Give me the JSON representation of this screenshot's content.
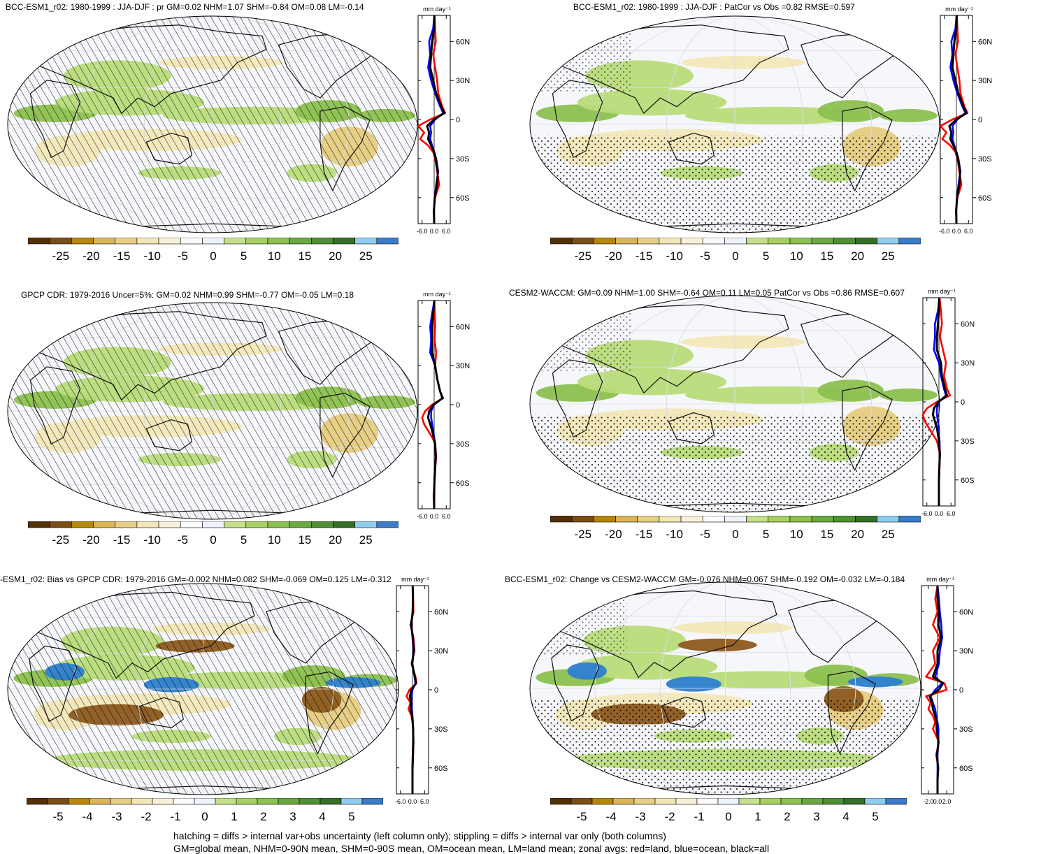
{
  "panels": [
    {
      "id": "p1",
      "title": "BCC-ESM1_r02: 1980-1999 : JJA-DJF : pr GM=0.02 NHM=1.07 SHM=-0.84 OM=0.08 LM=-0.14",
      "units": "mm day⁻¹",
      "pattern": "hatch",
      "colorbar_labels": [
        "-25",
        "-20",
        "-15",
        "-10",
        "-5",
        "0",
        "5",
        "10",
        "15",
        "20",
        "25"
      ],
      "zonal_xticks": [
        "-6.0",
        "0.0",
        "6.0"
      ],
      "zonal_xrange": [
        -8,
        8
      ]
    },
    {
      "id": "p2",
      "title": "BCC-ESM1_r02: 1980-1999 : JJA-DJF : PatCor vs Obs =0.82 RMSE=0.597",
      "units": "mm day⁻¹",
      "pattern": "stipple",
      "colorbar_labels": [
        "-25",
        "-20",
        "-15",
        "-10",
        "-5",
        "0",
        "5",
        "10",
        "15",
        "20",
        "25"
      ],
      "zonal_xticks": [
        "-6.0",
        "0.0",
        "6.0"
      ],
      "zonal_xrange": [
        -8,
        8
      ]
    },
    {
      "id": "p3",
      "title": "GPCP CDR: 1979-2016 Uncer=5%: GM=0.02 NHM=0.99 SHM=-0.77 OM=-0.05 LM=0.18",
      "units": "mm day⁻¹",
      "pattern": "hatch",
      "colorbar_labels": [
        "-25",
        "-20",
        "-15",
        "-10",
        "-5",
        "0",
        "5",
        "10",
        "15",
        "20",
        "25"
      ],
      "zonal_xticks": [
        "-6.0",
        "0.0",
        "6.0"
      ],
      "zonal_xrange": [
        -8,
        8
      ]
    },
    {
      "id": "p4",
      "title": "CESM2-WACCM: GM=0.09 NHM=1.00 SHM=-0.64 OM=0.11 LM=0.05 PatCor vs Obs =0.86 RMSE=0.607",
      "units": "mm day⁻¹",
      "pattern": "stipple",
      "colorbar_labels": [
        "-25",
        "-20",
        "-15",
        "-10",
        "-5",
        "0",
        "5",
        "10",
        "15",
        "20",
        "25"
      ],
      "zonal_xticks": [
        "-6.0",
        "0.0",
        "6.0"
      ],
      "zonal_xrange": [
        -8,
        8
      ]
    },
    {
      "id": "p5",
      "title": "-ESM1_r02: Bias vs GPCP CDR: 1979-2016 GM=-0.002 NHM=0.082 SHM=-0.069 OM=0.125 LM=-0.312",
      "units": "mm day⁻¹",
      "pattern": "hatch",
      "colorbar_labels": [
        "-5",
        "-4",
        "-3",
        "-2",
        "-1",
        "0",
        "1",
        "2",
        "3",
        "4",
        "5"
      ],
      "zonal_xticks": [
        "-6.0",
        "0.0",
        "6.0"
      ],
      "zonal_xrange": [
        -8,
        8
      ]
    },
    {
      "id": "p6",
      "title": "BCC-ESM1_r02: Change vs CESM2-WACCM GM=-0.076 NHM=0.067 SHM=-0.192 OM=-0.032 LM=-0.184",
      "units": "mm day⁻¹",
      "pattern": "stipple",
      "colorbar_labels": [
        "-5",
        "-4",
        "-3",
        "-2",
        "-1",
        "0",
        "1",
        "2",
        "3",
        "4",
        "5"
      ],
      "zonal_xticks": [
        "-2.0",
        "0.0",
        "2.0"
      ],
      "zonal_xrange": [
        -3.5,
        3.5
      ]
    }
  ],
  "lat_labels": [
    "60N",
    "30N",
    "0",
    "30S",
    "60S"
  ],
  "lat_values": [
    60,
    30,
    0,
    -30,
    -60
  ],
  "colorbar_colors": [
    "#543005",
    "#7a4e17",
    "#b8860b",
    "#d9b458",
    "#e6cf85",
    "#f1e6b6",
    "#f7f1d9",
    "#fafafa",
    "#eef2fb",
    "#c5e08a",
    "#a7d062",
    "#8cc04f",
    "#6aa843",
    "#4f8f35",
    "#356f28",
    "#8ecdf0",
    "#3a7cc9"
  ],
  "series_colors": {
    "land": "#ff0000",
    "ocean": "#0000ff",
    "all": "#000000"
  },
  "map_colors": {
    "ocean_bg": "#f6f7fb",
    "tan_light": "#f3e8b8",
    "tan_mid": "#e6cc80",
    "brown": "#8c5a1f",
    "green_light": "#b8dc7a",
    "green_mid": "#8cc04f",
    "green_dark": "#4f8f35",
    "blue": "#2d7fd0"
  },
  "chart_data": [
    {
      "type": "line",
      "title": "BCC-ESM1_r02: 1980-1999 : JJA-DJF : pr GM=0.02 NHM=1.07 SHM=-0.84 OM=0.08 LM=-0.14",
      "xlabel": "mm day⁻¹",
      "ylabel": "",
      "xlim": [
        -8,
        8
      ],
      "ylim": [
        -80,
        80
      ],
      "y": [
        80,
        70,
        60,
        50,
        40,
        30,
        20,
        10,
        5,
        0,
        -5,
        -10,
        -15,
        -20,
        -25,
        -30,
        -40,
        -50,
        -60,
        -70,
        -80
      ],
      "series": [
        {
          "name": "land",
          "values": [
            0.2,
            0.5,
            0.8,
            -0.5,
            0.5,
            1.5,
            2.0,
            4.0,
            5.5,
            -2.0,
            -8.0,
            -5.0,
            -7.0,
            -3.0,
            -0.5,
            0.5,
            1.5,
            2.5,
            0.5,
            -0.2,
            0.0
          ]
        },
        {
          "name": "ocean",
          "values": [
            0.1,
            -0.5,
            -2.5,
            -2.0,
            -3.0,
            -1.5,
            0.5,
            3.0,
            4.5,
            0.5,
            -2.0,
            -1.5,
            -2.0,
            -1.0,
            0.0,
            1.0,
            2.0,
            1.0,
            0.3,
            -0.1,
            0.0
          ]
        },
        {
          "name": "all",
          "values": [
            0.1,
            0.0,
            -1.0,
            -1.5,
            -2.0,
            -0.5,
            1.0,
            3.5,
            5.0,
            0.0,
            -3.5,
            -2.5,
            -3.0,
            -1.5,
            0.0,
            0.8,
            1.8,
            1.5,
            0.3,
            -0.1,
            0.0
          ]
        }
      ]
    },
    {
      "type": "line",
      "title": "BCC-ESM1_r02: 1980-1999 : JJA-DJF : PatCor vs Obs =0.82 RMSE=0.597",
      "xlabel": "mm day⁻¹",
      "ylabel": "",
      "xlim": [
        -8,
        8
      ],
      "ylim": [
        -80,
        80
      ],
      "y": [
        80,
        70,
        60,
        50,
        40,
        30,
        20,
        10,
        5,
        0,
        -5,
        -10,
        -15,
        -20,
        -25,
        -30,
        -40,
        -50,
        -60,
        -70,
        -80
      ],
      "series": [
        {
          "name": "land",
          "values": [
            0.2,
            0.5,
            0.8,
            -0.5,
            0.5,
            1.5,
            2.0,
            4.0,
            5.5,
            -2.0,
            -8.0,
            -5.0,
            -7.0,
            -3.0,
            -0.5,
            0.5,
            1.5,
            2.5,
            0.5,
            -0.2,
            0.0
          ]
        },
        {
          "name": "ocean",
          "values": [
            0.1,
            -0.5,
            -2.5,
            -2.0,
            -3.0,
            -1.5,
            0.5,
            3.0,
            4.5,
            0.5,
            -2.0,
            -1.5,
            -2.0,
            -1.0,
            0.0,
            1.0,
            2.0,
            1.0,
            0.3,
            -0.1,
            0.0
          ]
        },
        {
          "name": "all",
          "values": [
            0.1,
            0.0,
            -1.0,
            -1.5,
            -2.0,
            -0.5,
            1.0,
            3.5,
            5.0,
            0.0,
            -3.5,
            -2.5,
            -3.0,
            -1.5,
            0.0,
            0.8,
            1.8,
            1.5,
            0.3,
            -0.1,
            0.0
          ]
        }
      ]
    },
    {
      "type": "line",
      "title": "GPCP CDR: 1979-2016 Uncer=5%: GM=0.02 NHM=0.99 SHM=-0.77 OM=-0.05 LM=0.18",
      "xlabel": "mm day⁻¹",
      "ylabel": "",
      "xlim": [
        -8,
        8
      ],
      "ylim": [
        -80,
        80
      ],
      "y": [
        80,
        70,
        60,
        50,
        40,
        30,
        20,
        10,
        5,
        0,
        -5,
        -10,
        -15,
        -20,
        -25,
        -30,
        -40,
        -50,
        -60,
        -70,
        -80
      ],
      "series": [
        {
          "name": "land",
          "values": [
            0.1,
            0.3,
            0.5,
            0.2,
            1.0,
            0.5,
            1.5,
            3.0,
            4.5,
            -1.0,
            -4.5,
            -6.0,
            -5.0,
            -3.0,
            -1.0,
            0.5,
            1.0,
            0.5,
            0.2,
            -0.3,
            0.0
          ]
        },
        {
          "name": "ocean",
          "values": [
            0.1,
            -1.0,
            -2.0,
            -1.5,
            -2.0,
            0.5,
            1.5,
            3.0,
            4.0,
            0.0,
            -1.5,
            -1.5,
            -1.0,
            -0.5,
            0.0,
            0.5,
            0.8,
            0.3,
            0.1,
            0.0,
            0.0
          ]
        },
        {
          "name": "all",
          "values": [
            0.1,
            -0.5,
            -1.0,
            -1.0,
            -1.0,
            0.5,
            1.5,
            3.0,
            4.2,
            -0.3,
            -2.5,
            -3.0,
            -2.0,
            -1.0,
            -0.2,
            0.5,
            0.8,
            0.4,
            0.1,
            0.0,
            0.0
          ]
        }
      ]
    },
    {
      "type": "line",
      "title": "CESM2-WACCM: GM=0.09 NHM=1.00 SHM=-0.64 OM=0.11 LM=0.05 PatCor vs Obs =0.86 RMSE=0.607",
      "xlabel": "mm day⁻¹",
      "ylabel": "",
      "xlim": [
        -8,
        8
      ],
      "ylim": [
        -80,
        80
      ],
      "y": [
        80,
        70,
        60,
        50,
        40,
        30,
        20,
        10,
        5,
        0,
        -5,
        -10,
        -15,
        -20,
        -25,
        -30,
        -40,
        -50,
        -60,
        -70,
        -80
      ],
      "series": [
        {
          "name": "land",
          "values": [
            0.3,
            1.0,
            1.5,
            0.5,
            2.0,
            3.5,
            2.5,
            4.0,
            5.5,
            -1.0,
            -6.0,
            -8.0,
            -7.0,
            -5.0,
            -3.0,
            -1.0,
            0.5,
            0.3,
            0.1,
            0.0,
            0.0
          ]
        },
        {
          "name": "ocean",
          "values": [
            0.2,
            -0.5,
            -2.0,
            -2.0,
            -2.5,
            0.0,
            1.0,
            2.5,
            3.5,
            0.0,
            -1.0,
            -1.0,
            -0.5,
            0.0,
            0.0,
            0.3,
            0.5,
            0.2,
            0.0,
            0.0,
            0.0
          ]
        },
        {
          "name": "all",
          "values": [
            0.2,
            0.0,
            -0.5,
            -1.0,
            -1.0,
            1.0,
            1.5,
            3.0,
            4.0,
            -0.2,
            -2.5,
            -3.0,
            -2.0,
            -1.0,
            -0.5,
            0.0,
            0.5,
            0.2,
            0.0,
            0.0,
            0.0
          ]
        }
      ]
    },
    {
      "type": "line",
      "title": "-ESM1_r02: Bias vs GPCP CDR: 1979-2016 GM=-0.002 NHM=0.082 SHM=-0.069 OM=0.125 LM=-0.312",
      "xlabel": "mm day⁻¹",
      "ylabel": "",
      "xlim": [
        -8,
        8
      ],
      "ylim": [
        -80,
        80
      ],
      "y": [
        80,
        70,
        60,
        50,
        40,
        30,
        20,
        10,
        5,
        0,
        -5,
        -10,
        -15,
        -20,
        -25,
        -30,
        -40,
        -50,
        -60,
        -70,
        -80
      ],
      "series": [
        {
          "name": "land",
          "values": [
            0.1,
            0.3,
            0.5,
            -1.0,
            0.5,
            1.0,
            -0.5,
            1.5,
            2.0,
            -1.5,
            -3.0,
            -1.0,
            -2.0,
            -0.5,
            0.0,
            0.3,
            0.5,
            0.3,
            0.1,
            0.0,
            0.0
          ]
        },
        {
          "name": "ocean",
          "values": [
            0.1,
            0.2,
            0.0,
            -0.5,
            0.0,
            0.5,
            0.0,
            1.0,
            1.5,
            0.0,
            -0.5,
            -0.5,
            -0.3,
            0.0,
            0.2,
            0.3,
            0.3,
            0.1,
            0.0,
            0.0,
            0.0
          ]
        },
        {
          "name": "all",
          "values": [
            0.1,
            0.2,
            0.2,
            -0.7,
            0.2,
            0.7,
            -0.2,
            1.2,
            1.7,
            -0.5,
            -1.3,
            -0.7,
            -0.8,
            -0.2,
            0.1,
            0.3,
            0.4,
            0.2,
            0.0,
            0.0,
            0.0
          ]
        }
      ]
    },
    {
      "type": "line",
      "title": "BCC-ESM1_r02: Change vs CESM2-WACCM GM=-0.076 NHM=0.067 SHM=-0.192 OM=-0.032 LM=-0.184",
      "xlabel": "mm day⁻¹",
      "ylabel": "",
      "xlim": [
        -3.5,
        3.5
      ],
      "ylim": [
        -80,
        80
      ],
      "y": [
        80,
        70,
        60,
        50,
        40,
        30,
        20,
        10,
        5,
        0,
        -5,
        -10,
        -15,
        -20,
        -25,
        -30,
        -40,
        -50,
        -60,
        -70,
        -80
      ],
      "series": [
        {
          "name": "land",
          "values": [
            0.0,
            -0.5,
            0.0,
            -1.0,
            0.5,
            -1.0,
            -0.5,
            -2.5,
            1.5,
            2.0,
            -2.5,
            -1.5,
            -2.0,
            -1.0,
            -0.5,
            -1.0,
            0.3,
            -0.3,
            0.2,
            0.0,
            0.0
          ]
        },
        {
          "name": "ocean",
          "values": [
            0.0,
            0.3,
            0.5,
            0.8,
            1.0,
            0.5,
            0.3,
            -0.5,
            1.0,
            -0.5,
            -1.5,
            -1.0,
            -0.5,
            -0.3,
            0.0,
            0.2,
            0.2,
            0.0,
            0.0,
            0.0,
            0.0
          ]
        },
        {
          "name": "all",
          "values": [
            0.0,
            0.0,
            0.3,
            0.2,
            0.8,
            0.0,
            0.0,
            -1.0,
            1.2,
            0.3,
            -1.7,
            -1.2,
            -1.0,
            -0.5,
            -0.2,
            -0.2,
            0.2,
            -0.1,
            0.1,
            0.0,
            0.0
          ]
        }
      ]
    }
  ],
  "footer": {
    "line1": "hatching = diffs > internal var+obs uncertainty (left column only); stippling = diffs > internal var only (both columns)",
    "line2": "GM=global mean, NHM=0-90N mean, SHM=0-90S mean, OM=ocean mean, LM=land mean; zonal avgs: red=land, blue=ocean, black=all"
  }
}
